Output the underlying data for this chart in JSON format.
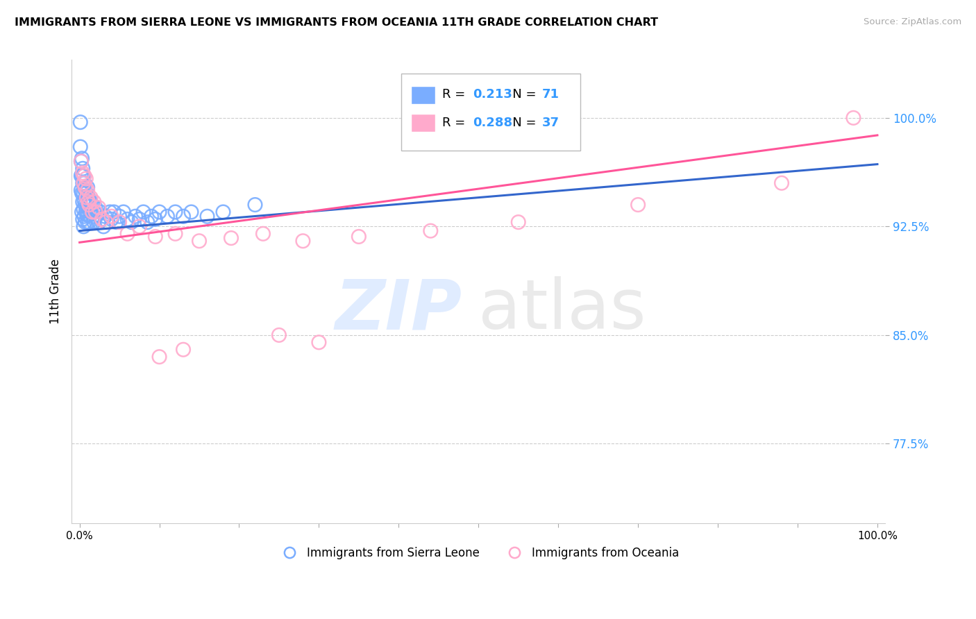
{
  "title": "IMMIGRANTS FROM SIERRA LEONE VS IMMIGRANTS FROM OCEANIA 11TH GRADE CORRELATION CHART",
  "source": "Source: ZipAtlas.com",
  "ylabel": "11th Grade",
  "y_min": 0.72,
  "y_max": 1.04,
  "x_min": -0.01,
  "x_max": 1.01,
  "blue_R": 0.213,
  "blue_N": 71,
  "pink_R": 0.288,
  "pink_N": 37,
  "blue_color": "#7aadff",
  "pink_color": "#ffaacc",
  "blue_line_color": "#3366cc",
  "pink_line_color": "#ff5599",
  "text_color_RN": "#3399ff",
  "legend_label_blue": "Immigrants from Sierra Leone",
  "legend_label_pink": "Immigrants from Oceania",
  "watermark_zip": "ZIP",
  "watermark_atlas": "atlas",
  "y_ticks": [
    0.775,
    0.85,
    0.925,
    1.0
  ],
  "y_tick_labels": [
    "77.5%",
    "85.0%",
    "92.5%",
    "100.0%"
  ],
  "x_ticks": [
    0.0,
    0.1,
    0.2,
    0.3,
    0.4,
    0.5,
    0.6,
    0.7,
    0.8,
    0.9,
    1.0
  ],
  "x_tick_labels": [
    "0.0%",
    "",
    "",
    "",
    "",
    "",
    "",
    "",
    "",
    "",
    "100.0%"
  ],
  "blue_x": [
    0.001,
    0.001,
    0.002,
    0.002,
    0.002,
    0.003,
    0.003,
    0.003,
    0.003,
    0.004,
    0.004,
    0.004,
    0.004,
    0.005,
    0.005,
    0.005,
    0.005,
    0.006,
    0.006,
    0.006,
    0.007,
    0.007,
    0.007,
    0.008,
    0.008,
    0.009,
    0.009,
    0.01,
    0.01,
    0.01,
    0.011,
    0.011,
    0.012,
    0.012,
    0.013,
    0.014,
    0.015,
    0.016,
    0.017,
    0.018,
    0.019,
    0.02,
    0.022,
    0.024,
    0.026,
    0.028,
    0.03,
    0.032,
    0.035,
    0.038,
    0.04,
    0.043,
    0.046,
    0.05,
    0.055,
    0.06,
    0.065,
    0.07,
    0.075,
    0.08,
    0.085,
    0.09,
    0.095,
    0.1,
    0.11,
    0.12,
    0.13,
    0.14,
    0.16,
    0.18,
    0.22
  ],
  "blue_y": [
    0.997,
    0.98,
    0.97,
    0.96,
    0.95,
    0.972,
    0.96,
    0.948,
    0.935,
    0.965,
    0.955,
    0.942,
    0.93,
    0.96,
    0.948,
    0.937,
    0.925,
    0.955,
    0.943,
    0.932,
    0.95,
    0.94,
    0.928,
    0.948,
    0.936,
    0.945,
    0.933,
    0.952,
    0.94,
    0.928,
    0.945,
    0.933,
    0.94,
    0.928,
    0.935,
    0.942,
    0.935,
    0.94,
    0.932,
    0.928,
    0.935,
    0.938,
    0.933,
    0.928,
    0.935,
    0.93,
    0.925,
    0.932,
    0.928,
    0.935,
    0.93,
    0.935,
    0.928,
    0.932,
    0.935,
    0.93,
    0.928,
    0.932,
    0.93,
    0.935,
    0.928,
    0.932,
    0.93,
    0.935,
    0.932,
    0.935,
    0.932,
    0.935,
    0.932,
    0.935,
    0.94
  ],
  "pink_x": [
    0.002,
    0.004,
    0.005,
    0.006,
    0.007,
    0.008,
    0.009,
    0.01,
    0.011,
    0.012,
    0.014,
    0.016,
    0.018,
    0.02,
    0.024,
    0.028,
    0.033,
    0.04,
    0.05,
    0.06,
    0.075,
    0.095,
    0.12,
    0.15,
    0.19,
    0.23,
    0.28,
    0.35,
    0.44,
    0.55,
    0.7,
    0.88,
    0.97,
    0.25,
    0.3,
    0.1,
    0.13
  ],
  "pink_y": [
    0.97,
    0.962,
    0.955,
    0.96,
    0.952,
    0.958,
    0.945,
    0.95,
    0.942,
    0.94,
    0.945,
    0.935,
    0.942,
    0.935,
    0.938,
    0.93,
    0.928,
    0.932,
    0.928,
    0.92,
    0.925,
    0.918,
    0.92,
    0.915,
    0.917,
    0.92,
    0.915,
    0.918,
    0.922,
    0.928,
    0.94,
    0.955,
    1.0,
    0.85,
    0.845,
    0.835,
    0.84
  ],
  "blue_line_x": [
    0.0,
    1.0
  ],
  "blue_line_y": [
    0.922,
    0.968
  ],
  "pink_line_x": [
    0.0,
    1.0
  ],
  "pink_line_y": [
    0.914,
    0.988
  ]
}
